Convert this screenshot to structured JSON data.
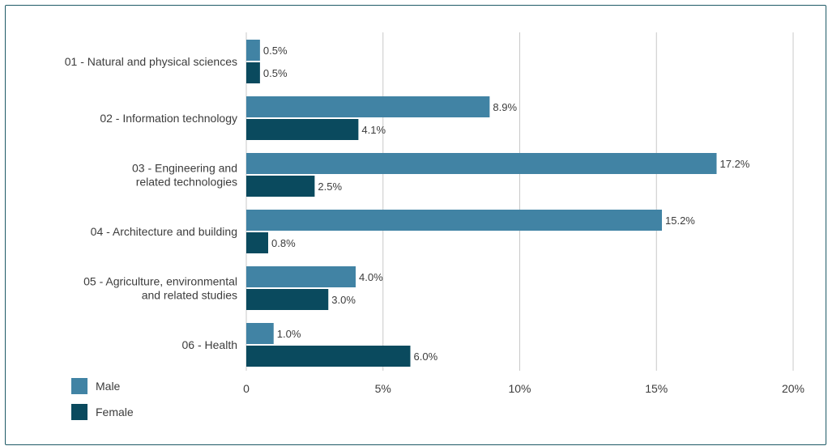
{
  "chart_data": {
    "type": "bar",
    "orientation": "horizontal",
    "categories": [
      [
        "01 - Natural and physical sciences"
      ],
      [
        "02 - Information technology"
      ],
      [
        "03 - Engineering and",
        "related technologies"
      ],
      [
        "04 - Architecture and building"
      ],
      [
        "05 - Agriculture, environmental",
        "and related studies"
      ],
      [
        "06 - Health"
      ]
    ],
    "series": [
      {
        "name": "Male",
        "color": "#4183a4",
        "values": [
          0.5,
          8.9,
          17.2,
          15.2,
          4.0,
          1.0
        ],
        "labels": [
          "0.5%",
          "8.9%",
          "17.2%",
          "15.2%",
          "4.0%",
          "1.0%"
        ]
      },
      {
        "name": "Female",
        "color": "#0a4a5e",
        "values": [
          0.5,
          4.1,
          2.5,
          0.8,
          3.0,
          6.0
        ],
        "labels": [
          "0.5%",
          "4.1%",
          "2.5%",
          "0.8%",
          "3.0%",
          "6.0%"
        ]
      }
    ],
    "xlim": [
      0,
      20
    ],
    "xticks": [
      0,
      5,
      10,
      15,
      20
    ],
    "xtick_labels": [
      "0",
      "5%",
      "10%",
      "15%",
      "20%"
    ],
    "grid": "vertical",
    "legend_position": "bottom-left"
  },
  "colors": {
    "grid": "#c8c8c8",
    "text": "#3c3c3c",
    "border": "#1e5a66"
  }
}
